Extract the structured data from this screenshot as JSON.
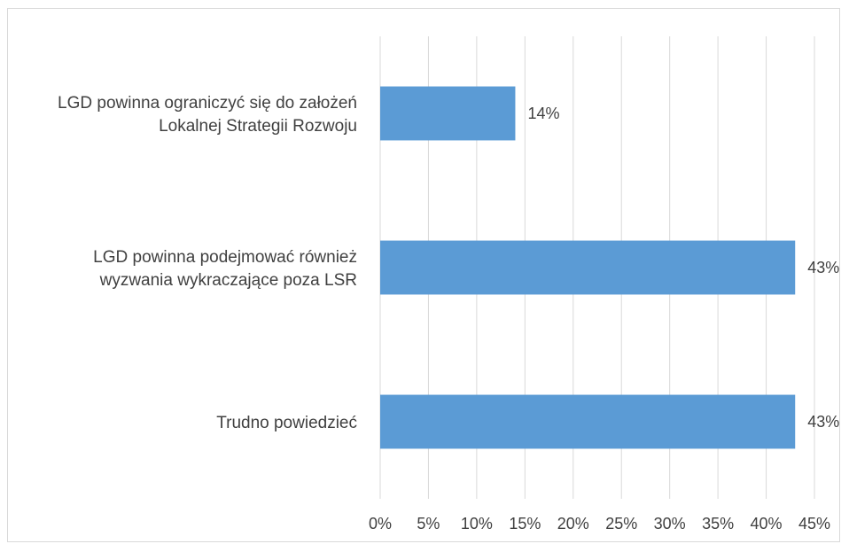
{
  "chart_data": {
    "type": "bar",
    "orientation": "horizontal",
    "categories": [
      [
        "LGD powinna ograniczyć się do założeń",
        "Lokalnej Strategii Rozwoju"
      ],
      [
        "LGD powinna podejmować również",
        "wyzwania wykraczające poza LSR"
      ],
      [
        "Trudno powiedzieć"
      ]
    ],
    "values": [
      14,
      43,
      43
    ],
    "data_labels": [
      "14%",
      "43%",
      "43%"
    ],
    "x_ticks": [
      "0%",
      "5%",
      "10%",
      "15%",
      "20%",
      "25%",
      "30%",
      "35%",
      "40%",
      "45%"
    ],
    "xlim": [
      0,
      45
    ],
    "grid": true,
    "title": "",
    "xlabel": "",
    "ylabel": "",
    "colors": {
      "bar": "#5b9bd5",
      "grid": "#d9d9d9",
      "text": "#404040"
    }
  }
}
